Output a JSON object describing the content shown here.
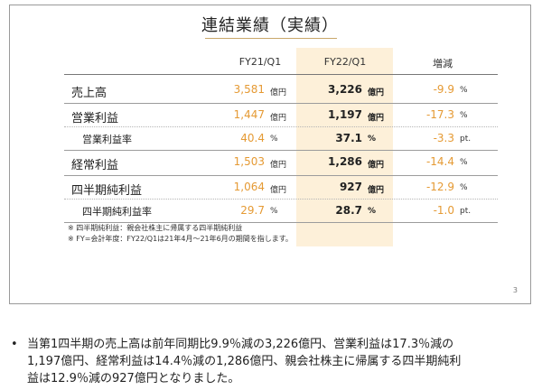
{
  "slide": {
    "title": "連結業績（実績）",
    "page_number": "3",
    "headers": {
      "fy21": "FY21/Q1",
      "fy22": "FY22/Q1",
      "change": "増減"
    },
    "rows": [
      {
        "label": "売上高",
        "fy21": "3,581",
        "fy21_unit": "億円",
        "fy22": "3,226",
        "fy22_unit": "億円",
        "change": "-9.9",
        "change_unit": "%"
      },
      {
        "label": "営業利益",
        "fy21": "1,447",
        "fy21_unit": "億円",
        "fy22": "1,197",
        "fy22_unit": "億円",
        "change": "-17.3",
        "change_unit": "%"
      },
      {
        "label": "営業利益率",
        "fy21": "40.4",
        "fy21_unit": "%",
        "fy22": "37.1",
        "fy22_unit": "%",
        "change": "-3.3",
        "change_unit": "pt."
      },
      {
        "label": "経常利益",
        "fy21": "1,503",
        "fy21_unit": "億円",
        "fy22": "1,286",
        "fy22_unit": "億円",
        "change": "-14.4",
        "change_unit": "%"
      },
      {
        "label": "四半期純利益",
        "fy21": "1,064",
        "fy21_unit": "億円",
        "fy22": "927",
        "fy22_unit": "億円",
        "change": "-12.9",
        "change_unit": "%"
      },
      {
        "label": "四半期純利益率",
        "fy21": "29.7",
        "fy21_unit": "%",
        "fy22": "28.7",
        "fy22_unit": "%",
        "change": "-1.0",
        "change_unit": "pt."
      }
    ],
    "notes": [
      "※ 四半期純利益：親会社株主に帰属する四半期純利益",
      "※ FY=会計年度：FY22/Q1は21年4月～21年6月の期間を指します。"
    ]
  },
  "bullet": {
    "symbol": "•",
    "lines": [
      "当第1四半期の売上高は前年同期比9.9％減の3,226億円、営業利益は17.3％減の",
      "1,197億円、経常利益は14.4％減の1,286億円、親会社株主に帰属する四半期純利",
      "益は12.9％減の927億円となりました。"
    ]
  }
}
